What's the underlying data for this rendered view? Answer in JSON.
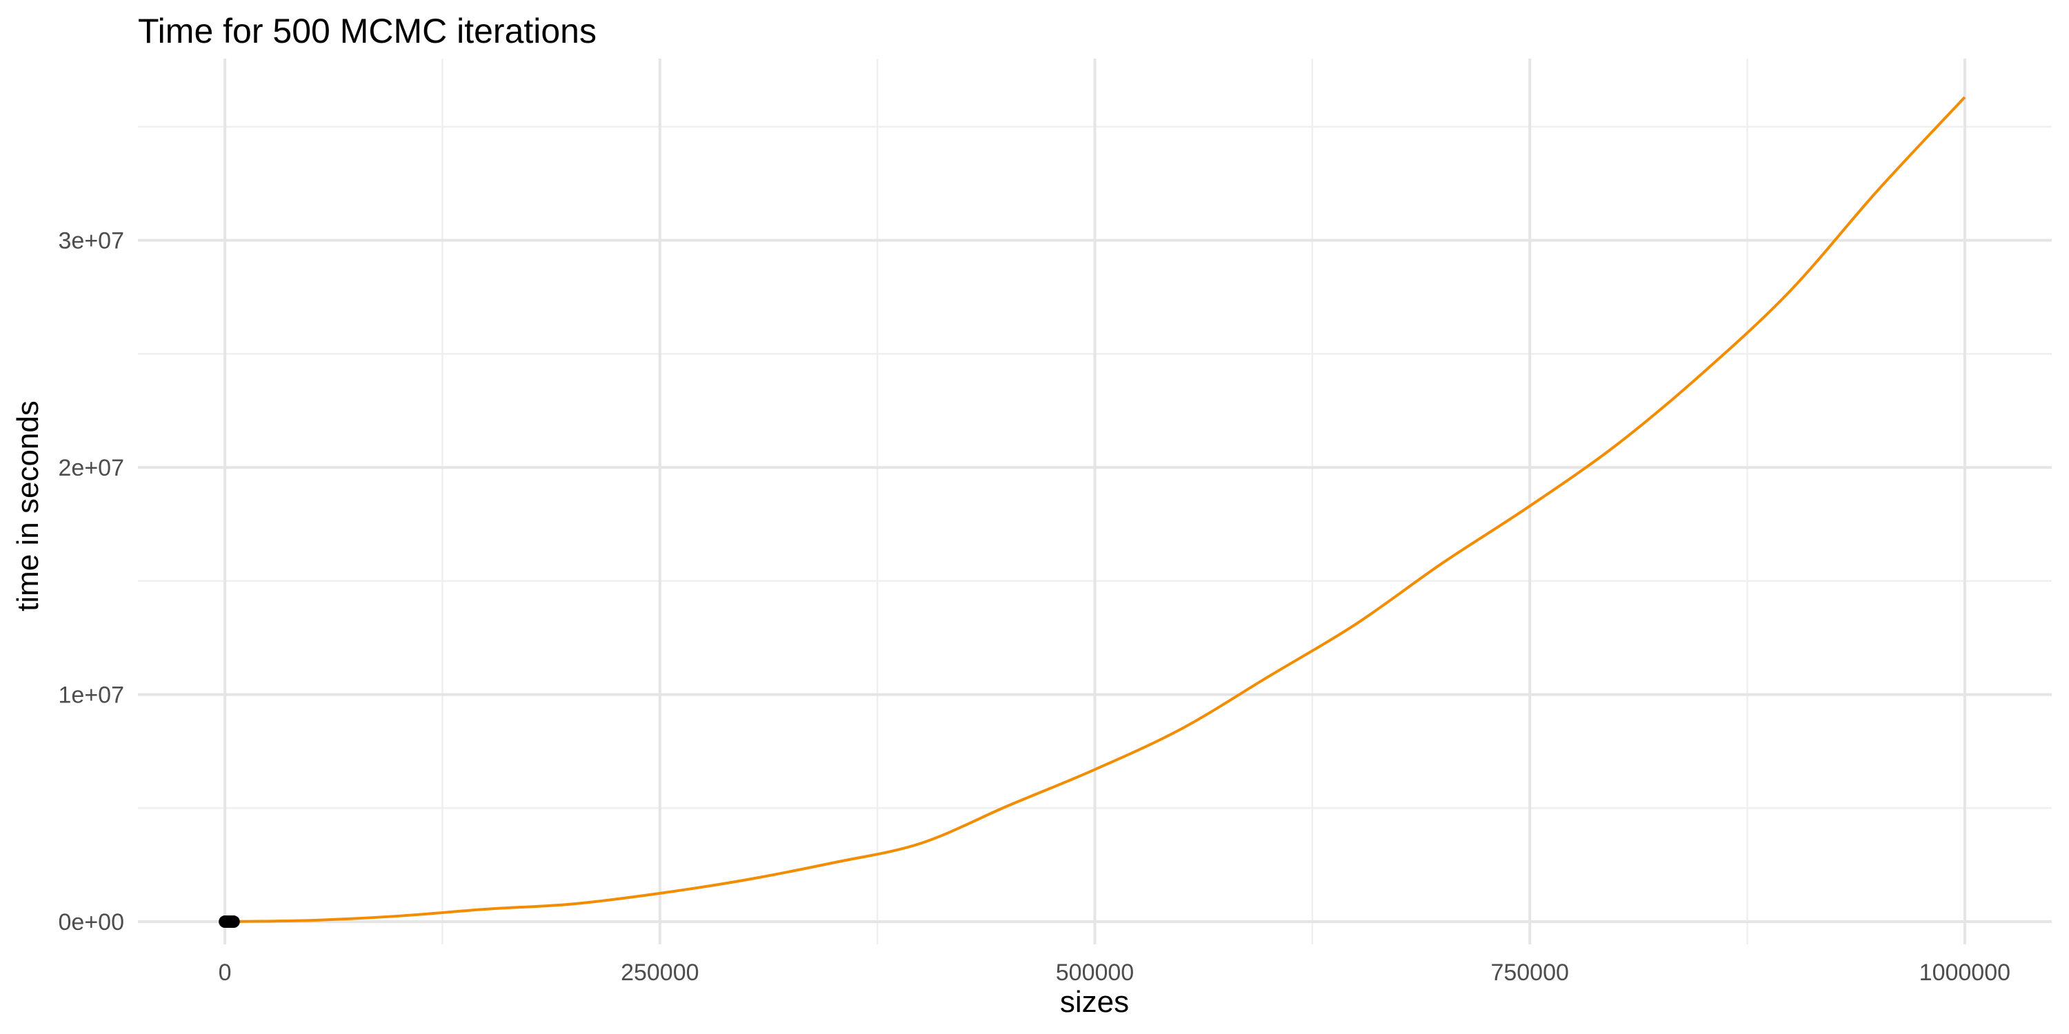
{
  "chart_data": {
    "type": "line",
    "title": "Time for 500 MCMC iterations",
    "xlabel": "sizes",
    "ylabel": "time in seconds",
    "xlim": [
      -50000,
      1050000
    ],
    "ylim": [
      -1000000,
      38000000
    ],
    "x_ticks": [
      0,
      250000,
      500000,
      750000,
      1000000
    ],
    "x_tick_labels": [
      "0",
      "250000",
      "500000",
      "750000",
      "1000000"
    ],
    "y_ticks": [
      0,
      10000000,
      20000000,
      30000000
    ],
    "y_tick_labels": [
      "0e+00",
      "1e+07",
      "2e+07",
      "3e+07"
    ],
    "grid": true,
    "legend": "none",
    "series": [
      {
        "kind": "curve",
        "color": "#F28C00",
        "x": [
          0,
          50000,
          100000,
          150000,
          200000,
          250000,
          300000,
          350000,
          400000,
          450000,
          500000,
          550000,
          600000,
          650000,
          700000,
          750000,
          800000,
          850000,
          900000,
          950000,
          1000000
        ],
        "y": [
          0,
          60000,
          250000,
          550000,
          780000,
          1250000,
          1850000,
          2600000,
          3450000,
          5100000,
          6700000,
          8500000,
          10800000,
          13100000,
          15800000,
          18300000,
          21000000,
          24200000,
          27800000,
          32200000,
          36300000
        ]
      },
      {
        "kind": "points",
        "color": "#000000",
        "x": [
          0,
          1000,
          2000,
          3000,
          4000,
          5000
        ],
        "y": [
          0,
          0,
          0,
          0,
          0,
          0
        ]
      }
    ]
  }
}
